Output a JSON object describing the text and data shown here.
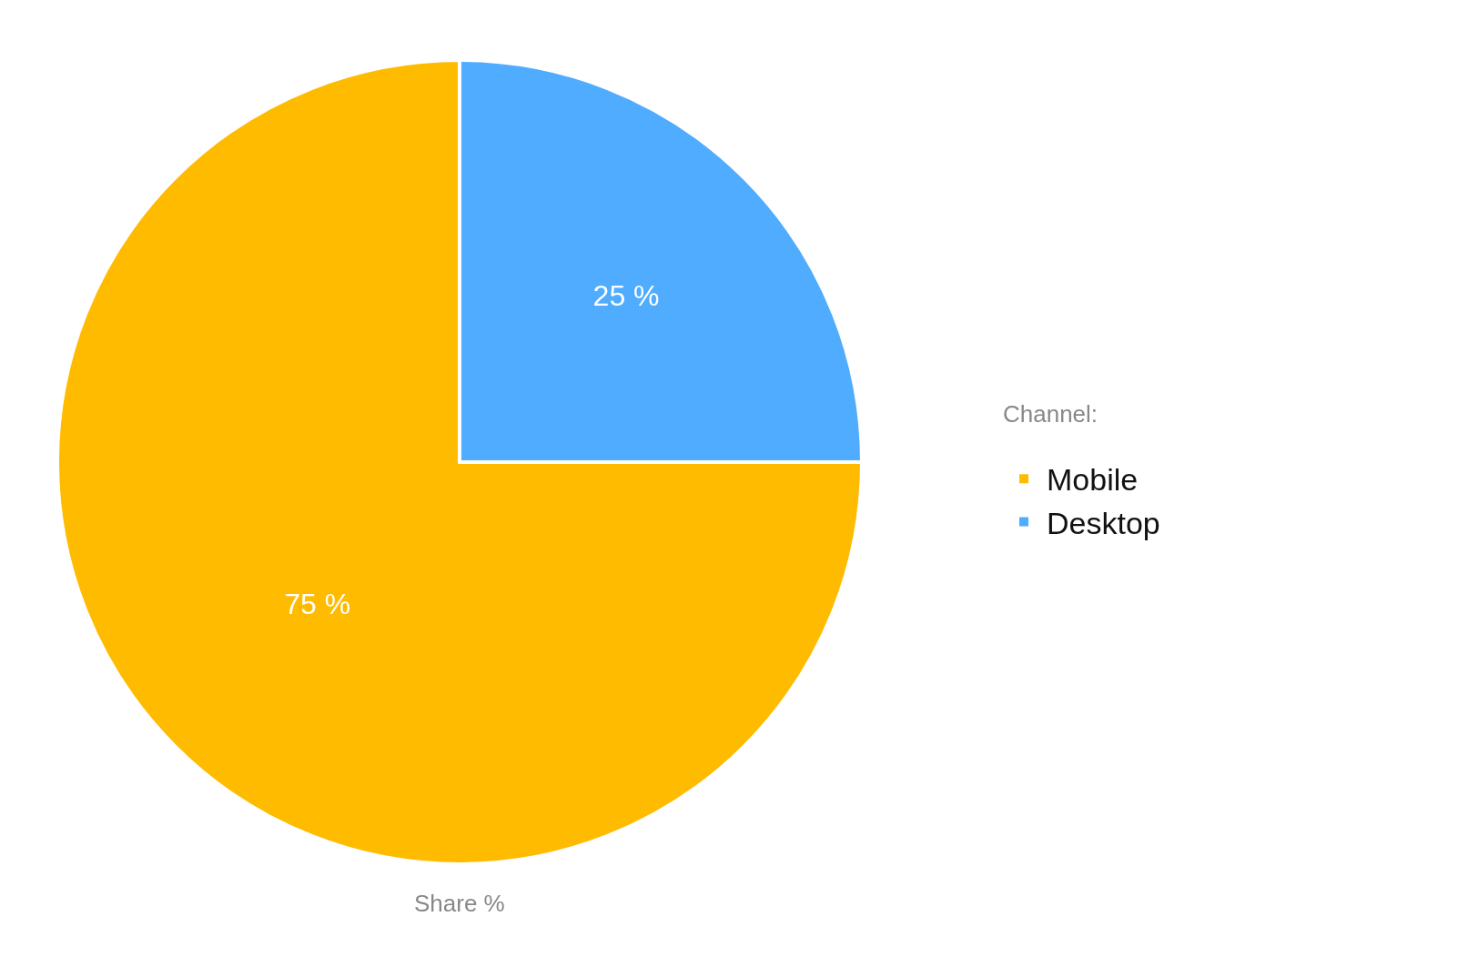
{
  "chart_data": {
    "type": "pie",
    "xlabel": "Share %",
    "legend_title": "Channel:",
    "categories": [
      "Mobile",
      "Desktop"
    ],
    "values": [
      75,
      25
    ],
    "colors": [
      "#ffbb00",
      "#4facfe"
    ],
    "value_labels": [
      "75 %",
      "25 %"
    ],
    "legend": "right"
  }
}
